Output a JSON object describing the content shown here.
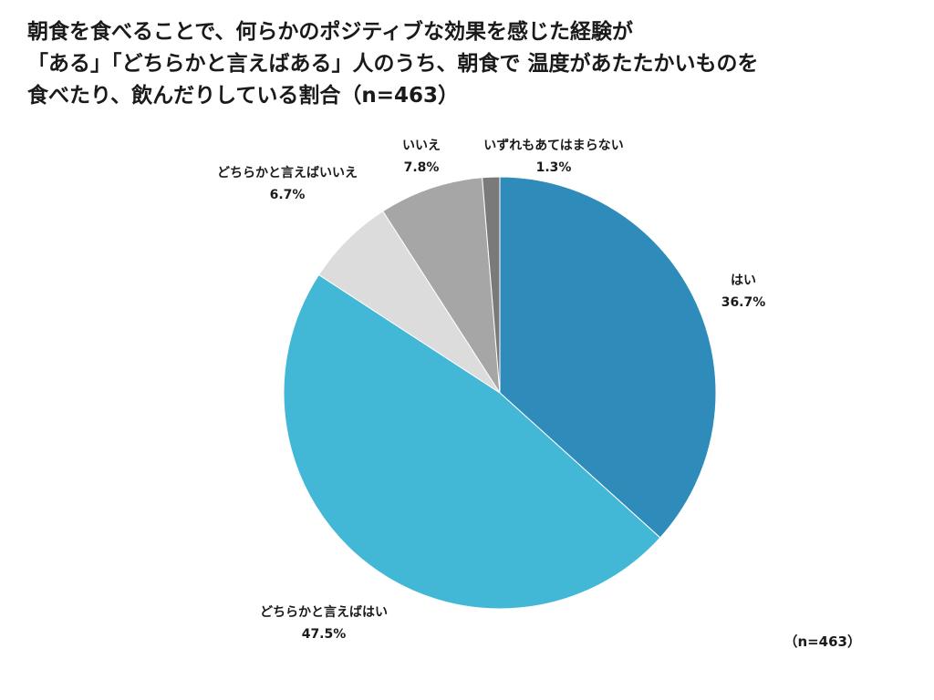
{
  "title_lines": [
    "朝食を食べることで、何らかのポジティブな効果を感じた経験が",
    "「ある」「どちらかと言えばある」人のうち、朝食で 温度があたたかいものを",
    "食べたり、飲んだりしている割合（n=463）"
  ],
  "sample_note": "（n=463）",
  "chart_data": {
    "type": "pie",
    "title": "朝食を食べることで、何らかのポジティブな効果を感じた経験が「ある」「どちらかと言えばある」人のうち、朝食で 温度があたたかいものを食べたり、飲んだりしている割合（n=463）",
    "start": "12 o'clock",
    "direction": "clockwise",
    "slices": [
      {
        "label": "はい",
        "value": 36.7,
        "display": "36.7%",
        "color": "#2e8bba"
      },
      {
        "label": "どちらかと言えばはい",
        "value": 47.5,
        "display": "47.5%",
        "color": "#42b8d6"
      },
      {
        "label": "どちらかと言えばいいえ",
        "value": 6.7,
        "display": "6.7%",
        "color": "#dcdcdc"
      },
      {
        "label": "いいえ",
        "value": 7.8,
        "display": "7.8%",
        "color": "#a6a6a6"
      },
      {
        "label": "いずれもあてはまらない",
        "value": 1.3,
        "display": "1.3%",
        "color": "#7a7a7a"
      }
    ]
  }
}
